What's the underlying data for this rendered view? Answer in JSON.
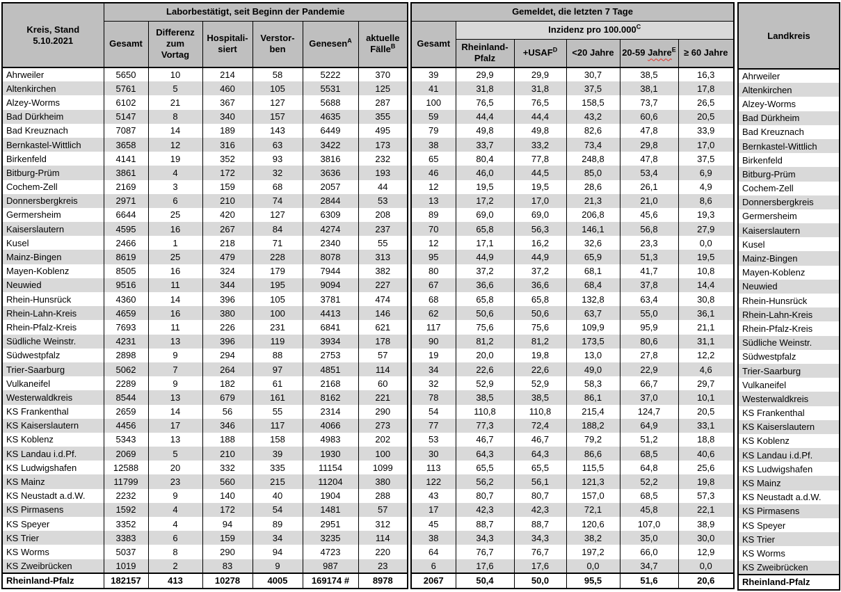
{
  "colors": {
    "header_bg": "#bfbfbf",
    "subheader_bg": "#d9d9d9",
    "row_stripe_bg": "#d9d9d9",
    "row_bg": "#ffffff",
    "border": "#000000",
    "spellcheck_underline": "#e03028"
  },
  "header": {
    "kreis_stand": "Kreis, Stand\n5.10.2021",
    "labor_group": "Laborbestätigt, seit Beginn der Pandemie",
    "gemeldet_group": "Gemeldet, die letzten 7 Tage",
    "inzidenz": {
      "label": "Inzidenz pro 100.000",
      "sup": "C"
    },
    "landkreis": "Landkreis",
    "labor_cols": {
      "gesamt": "Gesamt",
      "differenz": "Differenz\nzum\nVortag",
      "hospitalisiert": "Hospitali-\nsiert",
      "verstorben": "Verstor-\nben",
      "genesen": {
        "label": "Genesen",
        "sup": "A"
      },
      "aktuelle_faelle": {
        "label": "aktuelle\nFälle",
        "sup": "B"
      }
    },
    "gemeldet_cols": {
      "gesamt7": "Gesamt",
      "rlp": "Rheinland-\nPfalz",
      "usaf": {
        "label": "+USAF",
        "sup": "D"
      },
      "u20": "<20 Jahre",
      "j20_59": {
        "pre": "20-59 ",
        "word": "Jahre",
        "sup": "E"
      },
      "o60": "≥ 60 Jahre"
    }
  },
  "rows": [
    {
      "name": "Ahrweiler",
      "gesamt": "5650",
      "differenz": "10",
      "hospitalisiert": "214",
      "verstorben": "58",
      "genesen": "5222",
      "aktuelle_faelle": "370",
      "gesamt7": "39",
      "rlp": "29,9",
      "usaf": "29,9",
      "u20": "30,7",
      "j20_59": "38,5",
      "o60": "16,3"
    },
    {
      "name": "Altenkirchen",
      "gesamt": "5761",
      "differenz": "5",
      "hospitalisiert": "460",
      "verstorben": "105",
      "genesen": "5531",
      "aktuelle_faelle": "125",
      "gesamt7": "41",
      "rlp": "31,8",
      "usaf": "31,8",
      "u20": "37,5",
      "j20_59": "38,1",
      "o60": "17,8"
    },
    {
      "name": "Alzey-Worms",
      "gesamt": "6102",
      "differenz": "21",
      "hospitalisiert": "367",
      "verstorben": "127",
      "genesen": "5688",
      "aktuelle_faelle": "287",
      "gesamt7": "100",
      "rlp": "76,5",
      "usaf": "76,5",
      "u20": "158,5",
      "j20_59": "73,7",
      "o60": "26,5"
    },
    {
      "name": "Bad Dürkheim",
      "gesamt": "5147",
      "differenz": "8",
      "hospitalisiert": "340",
      "verstorben": "157",
      "genesen": "4635",
      "aktuelle_faelle": "355",
      "gesamt7": "59",
      "rlp": "44,4",
      "usaf": "44,4",
      "u20": "43,2",
      "j20_59": "60,6",
      "o60": "20,5"
    },
    {
      "name": "Bad Kreuznach",
      "gesamt": "7087",
      "differenz": "14",
      "hospitalisiert": "189",
      "verstorben": "143",
      "genesen": "6449",
      "aktuelle_faelle": "495",
      "gesamt7": "79",
      "rlp": "49,8",
      "usaf": "49,8",
      "u20": "82,6",
      "j20_59": "47,8",
      "o60": "33,9"
    },
    {
      "name": "Bernkastel-Wittlich",
      "gesamt": "3658",
      "differenz": "12",
      "hospitalisiert": "316",
      "verstorben": "63",
      "genesen": "3422",
      "aktuelle_faelle": "173",
      "gesamt7": "38",
      "rlp": "33,7",
      "usaf": "33,2",
      "u20": "73,4",
      "j20_59": "29,8",
      "o60": "17,0"
    },
    {
      "name": "Birkenfeld",
      "gesamt": "4141",
      "differenz": "19",
      "hospitalisiert": "352",
      "verstorben": "93",
      "genesen": "3816",
      "aktuelle_faelle": "232",
      "gesamt7": "65",
      "rlp": "80,4",
      "usaf": "77,8",
      "u20": "248,8",
      "j20_59": "47,8",
      "o60": "37,5"
    },
    {
      "name": "Bitburg-Prüm",
      "gesamt": "3861",
      "differenz": "4",
      "hospitalisiert": "172",
      "verstorben": "32",
      "genesen": "3636",
      "aktuelle_faelle": "193",
      "gesamt7": "46",
      "rlp": "46,0",
      "usaf": "44,5",
      "u20": "85,0",
      "j20_59": "53,4",
      "o60": "6,9"
    },
    {
      "name": "Cochem-Zell",
      "gesamt": "2169",
      "differenz": "3",
      "hospitalisiert": "159",
      "verstorben": "68",
      "genesen": "2057",
      "aktuelle_faelle": "44",
      "gesamt7": "12",
      "rlp": "19,5",
      "usaf": "19,5",
      "u20": "28,6",
      "j20_59": "26,1",
      "o60": "4,9"
    },
    {
      "name": "Donnersbergkreis",
      "gesamt": "2971",
      "differenz": "6",
      "hospitalisiert": "210",
      "verstorben": "74",
      "genesen": "2844",
      "aktuelle_faelle": "53",
      "gesamt7": "13",
      "rlp": "17,2",
      "usaf": "17,0",
      "u20": "21,3",
      "j20_59": "21,0",
      "o60": "8,6"
    },
    {
      "name": "Germersheim",
      "gesamt": "6644",
      "differenz": "25",
      "hospitalisiert": "420",
      "verstorben": "127",
      "genesen": "6309",
      "aktuelle_faelle": "208",
      "gesamt7": "89",
      "rlp": "69,0",
      "usaf": "69,0",
      "u20": "206,8",
      "j20_59": "45,6",
      "o60": "19,3"
    },
    {
      "name": "Kaiserslautern",
      "gesamt": "4595",
      "differenz": "16",
      "hospitalisiert": "267",
      "verstorben": "84",
      "genesen": "4274",
      "aktuelle_faelle": "237",
      "gesamt7": "70",
      "rlp": "65,8",
      "usaf": "56,3",
      "u20": "146,1",
      "j20_59": "56,8",
      "o60": "27,9"
    },
    {
      "name": "Kusel",
      "gesamt": "2466",
      "differenz": "1",
      "hospitalisiert": "218",
      "verstorben": "71",
      "genesen": "2340",
      "aktuelle_faelle": "55",
      "gesamt7": "12",
      "rlp": "17,1",
      "usaf": "16,2",
      "u20": "32,6",
      "j20_59": "23,3",
      "o60": "0,0"
    },
    {
      "name": "Mainz-Bingen",
      "gesamt": "8619",
      "differenz": "25",
      "hospitalisiert": "479",
      "verstorben": "228",
      "genesen": "8078",
      "aktuelle_faelle": "313",
      "gesamt7": "95",
      "rlp": "44,9",
      "usaf": "44,9",
      "u20": "65,9",
      "j20_59": "51,3",
      "o60": "19,5"
    },
    {
      "name": "Mayen-Koblenz",
      "gesamt": "8505",
      "differenz": "16",
      "hospitalisiert": "324",
      "verstorben": "179",
      "genesen": "7944",
      "aktuelle_faelle": "382",
      "gesamt7": "80",
      "rlp": "37,2",
      "usaf": "37,2",
      "u20": "68,1",
      "j20_59": "41,7",
      "o60": "10,8"
    },
    {
      "name": "Neuwied",
      "gesamt": "9516",
      "differenz": "11",
      "hospitalisiert": "344",
      "verstorben": "195",
      "genesen": "9094",
      "aktuelle_faelle": "227",
      "gesamt7": "67",
      "rlp": "36,6",
      "usaf": "36,6",
      "u20": "68,4",
      "j20_59": "37,8",
      "o60": "14,4"
    },
    {
      "name": "Rhein-Hunsrück",
      "gesamt": "4360",
      "differenz": "14",
      "hospitalisiert": "396",
      "verstorben": "105",
      "genesen": "3781",
      "aktuelle_faelle": "474",
      "gesamt7": "68",
      "rlp": "65,8",
      "usaf": "65,8",
      "u20": "132,8",
      "j20_59": "63,4",
      "o60": "30,8"
    },
    {
      "name": "Rhein-Lahn-Kreis",
      "gesamt": "4659",
      "differenz": "16",
      "hospitalisiert": "380",
      "verstorben": "100",
      "genesen": "4413",
      "aktuelle_faelle": "146",
      "gesamt7": "62",
      "rlp": "50,6",
      "usaf": "50,6",
      "u20": "63,7",
      "j20_59": "55,0",
      "o60": "36,1"
    },
    {
      "name": "Rhein-Pfalz-Kreis",
      "gesamt": "7693",
      "differenz": "11",
      "hospitalisiert": "226",
      "verstorben": "231",
      "genesen": "6841",
      "aktuelle_faelle": "621",
      "gesamt7": "117",
      "rlp": "75,6",
      "usaf": "75,6",
      "u20": "109,9",
      "j20_59": "95,9",
      "o60": "21,1"
    },
    {
      "name": "Südliche Weinstr.",
      "gesamt": "4231",
      "differenz": "13",
      "hospitalisiert": "396",
      "verstorben": "119",
      "genesen": "3934",
      "aktuelle_faelle": "178",
      "gesamt7": "90",
      "rlp": "81,2",
      "usaf": "81,2",
      "u20": "173,5",
      "j20_59": "80,6",
      "o60": "31,1"
    },
    {
      "name": "Südwestpfalz",
      "gesamt": "2898",
      "differenz": "9",
      "hospitalisiert": "294",
      "verstorben": "88",
      "genesen": "2753",
      "aktuelle_faelle": "57",
      "gesamt7": "19",
      "rlp": "20,0",
      "usaf": "19,8",
      "u20": "13,0",
      "j20_59": "27,8",
      "o60": "12,2"
    },
    {
      "name": "Trier-Saarburg",
      "gesamt": "5062",
      "differenz": "7",
      "hospitalisiert": "264",
      "verstorben": "97",
      "genesen": "4851",
      "aktuelle_faelle": "114",
      "gesamt7": "34",
      "rlp": "22,6",
      "usaf": "22,6",
      "u20": "49,0",
      "j20_59": "22,9",
      "o60": "4,6"
    },
    {
      "name": "Vulkaneifel",
      "gesamt": "2289",
      "differenz": "9",
      "hospitalisiert": "182",
      "verstorben": "61",
      "genesen": "2168",
      "aktuelle_faelle": "60",
      "gesamt7": "32",
      "rlp": "52,9",
      "usaf": "52,9",
      "u20": "58,3",
      "j20_59": "66,7",
      "o60": "29,7"
    },
    {
      "name": "Westerwaldkreis",
      "gesamt": "8544",
      "differenz": "13",
      "hospitalisiert": "679",
      "verstorben": "161",
      "genesen": "8162",
      "aktuelle_faelle": "221",
      "gesamt7": "78",
      "rlp": "38,5",
      "usaf": "38,5",
      "u20": "86,1",
      "j20_59": "37,0",
      "o60": "10,1"
    },
    {
      "name": "KS Frankenthal",
      "gesamt": "2659",
      "differenz": "14",
      "hospitalisiert": "56",
      "verstorben": "55",
      "genesen": "2314",
      "aktuelle_faelle": "290",
      "gesamt7": "54",
      "rlp": "110,8",
      "usaf": "110,8",
      "u20": "215,4",
      "j20_59": "124,7",
      "o60": "20,5"
    },
    {
      "name": "KS Kaiserslautern",
      "gesamt": "4456",
      "differenz": "17",
      "hospitalisiert": "346",
      "verstorben": "117",
      "genesen": "4066",
      "aktuelle_faelle": "273",
      "gesamt7": "77",
      "rlp": "77,3",
      "usaf": "72,4",
      "u20": "188,2",
      "j20_59": "64,9",
      "o60": "33,1"
    },
    {
      "name": "KS Koblenz",
      "gesamt": "5343",
      "differenz": "13",
      "hospitalisiert": "188",
      "verstorben": "158",
      "genesen": "4983",
      "aktuelle_faelle": "202",
      "gesamt7": "53",
      "rlp": "46,7",
      "usaf": "46,7",
      "u20": "79,2",
      "j20_59": "51,2",
      "o60": "18,8"
    },
    {
      "name": "KS Landau i.d.Pf.",
      "gesamt": "2069",
      "differenz": "5",
      "hospitalisiert": "210",
      "verstorben": "39",
      "genesen": "1930",
      "aktuelle_faelle": "100",
      "gesamt7": "30",
      "rlp": "64,3",
      "usaf": "64,3",
      "u20": "86,6",
      "j20_59": "68,5",
      "o60": "40,6"
    },
    {
      "name": "KS Ludwigshafen",
      "gesamt": "12588",
      "differenz": "20",
      "hospitalisiert": "332",
      "verstorben": "335",
      "genesen": "11154",
      "aktuelle_faelle": "1099",
      "gesamt7": "113",
      "rlp": "65,5",
      "usaf": "65,5",
      "u20": "115,5",
      "j20_59": "64,8",
      "o60": "25,6"
    },
    {
      "name": "KS Mainz",
      "gesamt": "11799",
      "differenz": "23",
      "hospitalisiert": "560",
      "verstorben": "215",
      "genesen": "11204",
      "aktuelle_faelle": "380",
      "gesamt7": "122",
      "rlp": "56,2",
      "usaf": "56,1",
      "u20": "121,3",
      "j20_59": "52,2",
      "o60": "19,8"
    },
    {
      "name": "KS Neustadt a.d.W.",
      "gesamt": "2232",
      "differenz": "9",
      "hospitalisiert": "140",
      "verstorben": "40",
      "genesen": "1904",
      "aktuelle_faelle": "288",
      "gesamt7": "43",
      "rlp": "80,7",
      "usaf": "80,7",
      "u20": "157,0",
      "j20_59": "68,5",
      "o60": "57,3"
    },
    {
      "name": "KS Pirmasens",
      "gesamt": "1592",
      "differenz": "4",
      "hospitalisiert": "172",
      "verstorben": "54",
      "genesen": "1481",
      "aktuelle_faelle": "57",
      "gesamt7": "17",
      "rlp": "42,3",
      "usaf": "42,3",
      "u20": "72,1",
      "j20_59": "45,8",
      "o60": "22,1"
    },
    {
      "name": "KS Speyer",
      "gesamt": "3352",
      "differenz": "4",
      "hospitalisiert": "94",
      "verstorben": "89",
      "genesen": "2951",
      "aktuelle_faelle": "312",
      "gesamt7": "45",
      "rlp": "88,7",
      "usaf": "88,7",
      "u20": "120,6",
      "j20_59": "107,0",
      "o60": "38,9"
    },
    {
      "name": "KS Trier",
      "gesamt": "3383",
      "differenz": "6",
      "hospitalisiert": "159",
      "verstorben": "34",
      "genesen": "3235",
      "aktuelle_faelle": "114",
      "gesamt7": "38",
      "rlp": "34,3",
      "usaf": "34,3",
      "u20": "38,2",
      "j20_59": "35,0",
      "o60": "30,0"
    },
    {
      "name": "KS Worms",
      "gesamt": "5037",
      "differenz": "8",
      "hospitalisiert": "290",
      "verstorben": "94",
      "genesen": "4723",
      "aktuelle_faelle": "220",
      "gesamt7": "64",
      "rlp": "76,7",
      "usaf": "76,7",
      "u20": "197,2",
      "j20_59": "66,0",
      "o60": "12,9"
    },
    {
      "name": "KS Zweibrücken",
      "gesamt": "1019",
      "differenz": "2",
      "hospitalisiert": "83",
      "verstorben": "9",
      "genesen": "987",
      "aktuelle_faelle": "23",
      "gesamt7": "6",
      "rlp": "17,6",
      "usaf": "17,6",
      "u20": "0,0",
      "j20_59": "34,7",
      "o60": "0,0"
    }
  ],
  "total_row": {
    "name": "Rheinland-Pfalz",
    "gesamt": "182157",
    "differenz": "413",
    "hospitalisiert": "10278",
    "verstorben": "4005",
    "genesen": "169174 #",
    "aktuelle_faelle": "8978",
    "gesamt7": "2067",
    "rlp": "50,4",
    "usaf": "50,0",
    "u20": "95,5",
    "j20_59": "51,6",
    "o60": "20,6"
  }
}
